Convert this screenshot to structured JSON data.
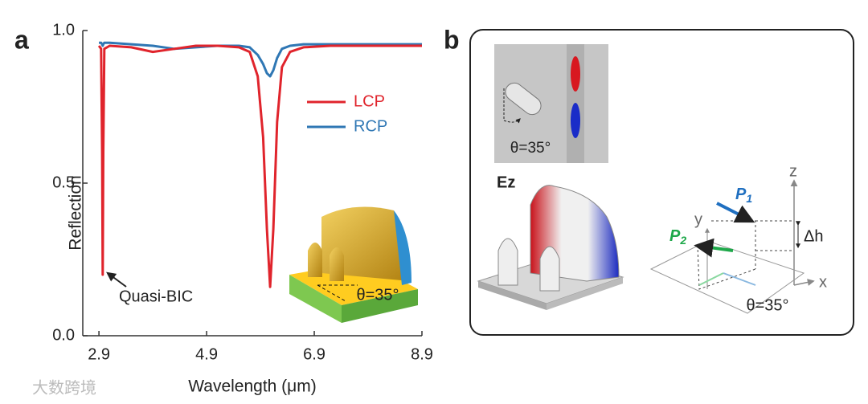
{
  "chart_data": {
    "type": "line",
    "panel_label": "a",
    "x_label": "Wavelength (μm)",
    "y_label": "Reflection",
    "x": [
      2.9,
      2.94,
      2.96,
      2.97,
      2.98,
      3.0,
      3.1,
      3.5,
      3.9,
      4.3,
      4.7,
      5.1,
      5.5,
      5.7,
      5.85,
      5.95,
      6.02,
      6.08,
      6.14,
      6.21,
      6.3,
      6.45,
      6.7,
      7.2,
      7.8,
      8.4,
      8.9
    ],
    "series": [
      {
        "name": "LCP",
        "color": "#e0242c",
        "values": [
          0.95,
          0.94,
          0.6,
          0.2,
          0.6,
          0.94,
          0.95,
          0.945,
          0.93,
          0.94,
          0.95,
          0.95,
          0.945,
          0.93,
          0.85,
          0.65,
          0.35,
          0.16,
          0.35,
          0.7,
          0.88,
          0.93,
          0.945,
          0.95,
          0.95,
          0.95,
          0.95
        ]
      },
      {
        "name": "RCP",
        "color": "#2f77b4",
        "values": [
          0.96,
          0.96,
          0.955,
          0.95,
          0.955,
          0.96,
          0.96,
          0.955,
          0.95,
          0.94,
          0.945,
          0.95,
          0.95,
          0.945,
          0.92,
          0.89,
          0.86,
          0.85,
          0.87,
          0.91,
          0.94,
          0.95,
          0.955,
          0.955,
          0.955,
          0.955,
          0.955
        ]
      }
    ],
    "xlim": [
      2.6,
      8.9
    ],
    "xticks": [
      2.9,
      4.9,
      6.9,
      8.9
    ],
    "ylim": [
      0,
      1
    ],
    "yticks": [
      {
        "value": 0,
        "label": "0.0"
      },
      {
        "value": 0.5,
        "label": "0.5"
      },
      {
        "value": 1,
        "label": "1.0"
      }
    ],
    "grid": false,
    "legend": "right",
    "annotation": "Quasi-BIC",
    "inset_label": "θ=35°"
  },
  "panel_b": {
    "panel_label": "b",
    "inset_label": "θ=35°",
    "field_label": "Ez",
    "axis_z": "z",
    "axis_y": "y",
    "axis_x": "x",
    "height_label": "Δh",
    "p1": "P",
    "p1_sub": "1",
    "p2": "P",
    "p2_sub": "2",
    "angle_label": "θ=35°"
  },
  "watermark": "大数跨境"
}
